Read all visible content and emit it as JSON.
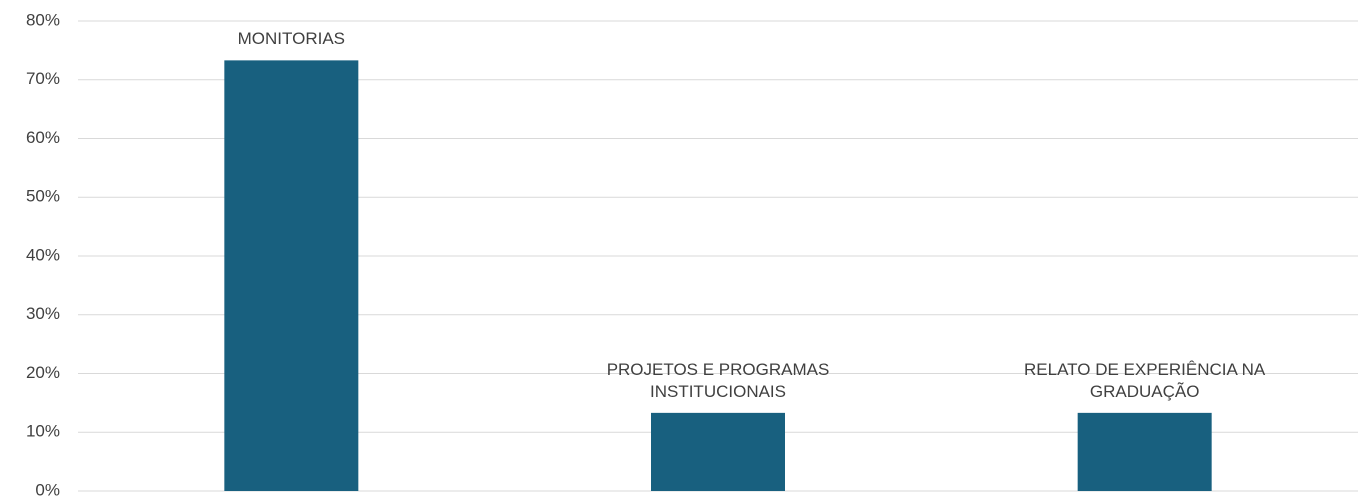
{
  "chart_data": {
    "type": "bar",
    "categories": [
      "MONITORIAS",
      "PROJETOS E PROGRAMAS INSTITUCIONAIS",
      "RELATO DE EXPERIÊNCIA NA GRADUAÇÃO"
    ],
    "values": [
      73.3,
      13.3,
      13.3
    ],
    "color": "#18607f",
    "ylim": [
      0,
      80
    ],
    "yticks": [
      {
        "value": 0,
        "label": "0%"
      },
      {
        "value": 10,
        "label": "10%"
      },
      {
        "value": 20,
        "label": "20%"
      },
      {
        "value": 30,
        "label": "30%"
      },
      {
        "value": 40,
        "label": "40%"
      },
      {
        "value": 50,
        "label": "50%"
      },
      {
        "value": 60,
        "label": "60%"
      },
      {
        "value": 70,
        "label": "70%"
      },
      {
        "value": 80,
        "label": "80%"
      }
    ],
    "grid": true
  }
}
